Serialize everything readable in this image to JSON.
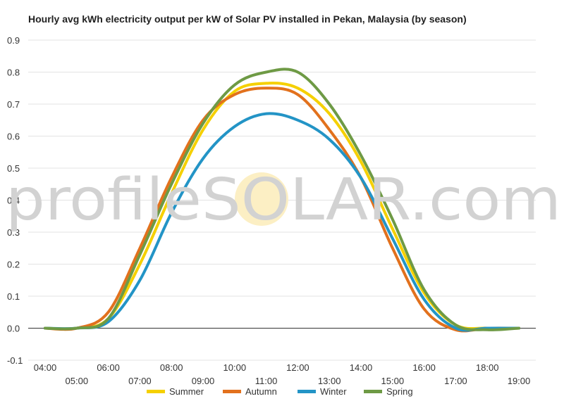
{
  "chart_data": {
    "type": "line",
    "title": "Hourly avg kWh electricity output per kW of Solar PV installed in Pekan, Malaysia (by season)",
    "xlabel": "",
    "ylabel": "",
    "x": [
      "04:00",
      "05:00",
      "06:00",
      "07:00",
      "08:00",
      "09:00",
      "10:00",
      "11:00",
      "12:00",
      "13:00",
      "14:00",
      "15:00",
      "16:00",
      "17:00",
      "18:00",
      "19:00"
    ],
    "ylim": [
      -0.1,
      0.9
    ],
    "yticks": [
      "0.9",
      "0.8",
      "0.7",
      "0.6",
      "0.5",
      "0.4",
      "0.3",
      "0.2",
      "0.1",
      "0.0",
      "-0.1"
    ],
    "grid": true,
    "legend_position": "bottom",
    "series": [
      {
        "name": "Summer",
        "color": "#F5D000",
        "values": [
          0.0,
          0.0,
          0.03,
          0.2,
          0.42,
          0.62,
          0.74,
          0.765,
          0.75,
          0.67,
          0.52,
          0.31,
          0.11,
          0.01,
          0.0,
          0.0
        ]
      },
      {
        "name": "Autumn",
        "color": "#E2711D",
        "values": [
          0.0,
          0.0,
          0.05,
          0.25,
          0.47,
          0.65,
          0.73,
          0.75,
          0.73,
          0.62,
          0.47,
          0.25,
          0.06,
          -0.005,
          0.0,
          0.0
        ]
      },
      {
        "name": "Winter",
        "color": "#2394C6",
        "values": [
          0.0,
          0.0,
          0.02,
          0.15,
          0.36,
          0.53,
          0.63,
          0.67,
          0.65,
          0.59,
          0.47,
          0.28,
          0.09,
          0.0,
          0.0,
          0.0
        ]
      },
      {
        "name": "Spring",
        "color": "#6E9A45",
        "values": [
          0.0,
          0.0,
          0.03,
          0.23,
          0.45,
          0.64,
          0.76,
          0.8,
          0.8,
          0.7,
          0.54,
          0.34,
          0.12,
          0.01,
          -0.005,
          0.0
        ]
      }
    ]
  },
  "watermark": {
    "left": "profile",
    "brand": "SOLAR",
    "right": ".com",
    "sun_color": "#FCEFC4"
  }
}
